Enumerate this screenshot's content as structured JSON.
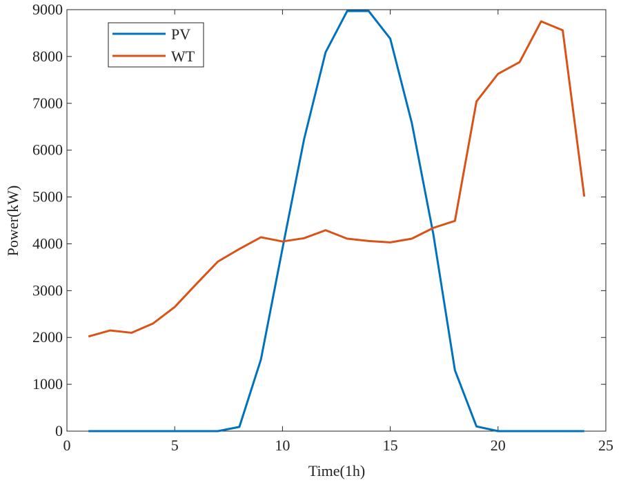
{
  "chart_data": {
    "type": "line",
    "title": "",
    "xlabel": "Time(1h)",
    "ylabel": "Power(kW)",
    "xlim": [
      0,
      25
    ],
    "ylim": [
      0,
      9000
    ],
    "xticks": [
      0,
      5,
      10,
      15,
      20,
      25
    ],
    "yticks": [
      0,
      1000,
      2000,
      3000,
      4000,
      5000,
      6000,
      7000,
      8000,
      9000
    ],
    "grid": false,
    "legend_position": "top-left",
    "x": [
      1,
      2,
      3,
      4,
      5,
      6,
      7,
      8,
      9,
      10,
      11,
      12,
      13,
      14,
      15,
      16,
      17,
      18,
      19,
      20,
      21,
      22,
      23,
      24
    ],
    "series": [
      {
        "name": "PV",
        "color": "#0072BD",
        "values": [
          0,
          0,
          0,
          0,
          0,
          0,
          0,
          90,
          1530,
          3900,
          6230,
          8090,
          8970,
          8970,
          8380,
          6580,
          4200,
          1300,
          100,
          0,
          0,
          0,
          0,
          0
        ]
      },
      {
        "name": "WT",
        "color": "#D95319",
        "values": [
          2020,
          2150,
          2100,
          2300,
          2650,
          3140,
          3620,
          3890,
          4140,
          4050,
          4120,
          4290,
          4110,
          4060,
          4030,
          4110,
          4340,
          4490,
          7040,
          7630,
          7880,
          8750,
          8560,
          5010
        ]
      }
    ]
  }
}
